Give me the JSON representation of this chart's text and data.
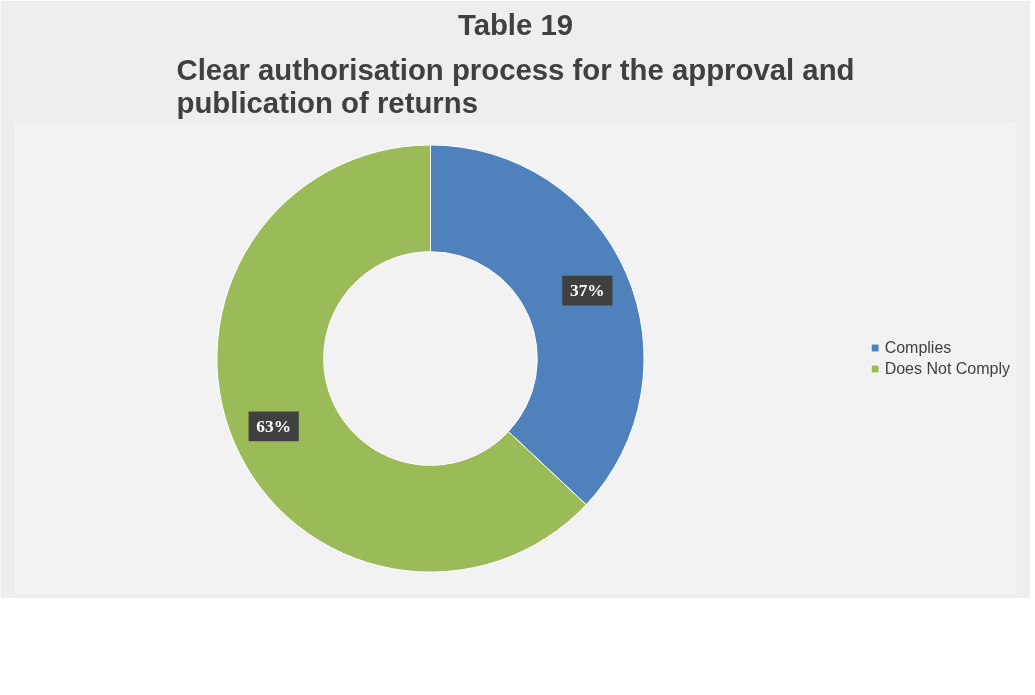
{
  "chart_data": {
    "type": "donut",
    "title": "Table 19",
    "subtitle": "Clear authorisation process for the approval and publication of returns",
    "categories": [
      "Complies",
      "Does Not Comply"
    ],
    "values": [
      37,
      63
    ],
    "colors": [
      "#4f81bd",
      "#9bbb59"
    ],
    "value_labels": [
      "37%",
      "63%"
    ],
    "legend": "right"
  }
}
